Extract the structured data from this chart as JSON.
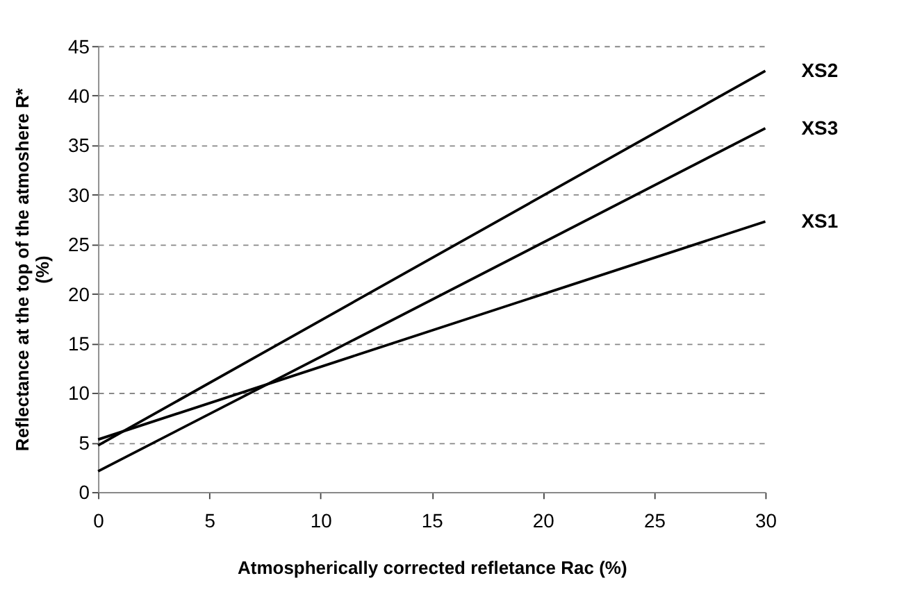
{
  "chart_data": {
    "type": "line",
    "xlabel": "Atmospherically corrected refletance Rac (%)",
    "ylabel": [
      "Reflectance at the top of the atmoshere R*",
      "(%)"
    ],
    "x": [
      0,
      30
    ],
    "series": [
      {
        "name": "XS2",
        "color": "#000000",
        "values": [
          4.7,
          42.5
        ]
      },
      {
        "name": "XS3",
        "color": "#000000",
        "values": [
          2.1,
          36.7
        ]
      },
      {
        "name": "XS1",
        "color": "#000000",
        "values": [
          5.3,
          27.3
        ]
      }
    ],
    "xlim": [
      0,
      30
    ],
    "xticks": [
      0,
      5,
      10,
      15,
      20,
      25,
      30
    ],
    "ylim": [
      0,
      45
    ],
    "yticks": [
      0,
      5,
      10,
      15,
      20,
      25,
      30,
      35,
      40,
      45
    ],
    "grid": "y",
    "legend": false,
    "marker": "none",
    "line_style": "solid"
  }
}
